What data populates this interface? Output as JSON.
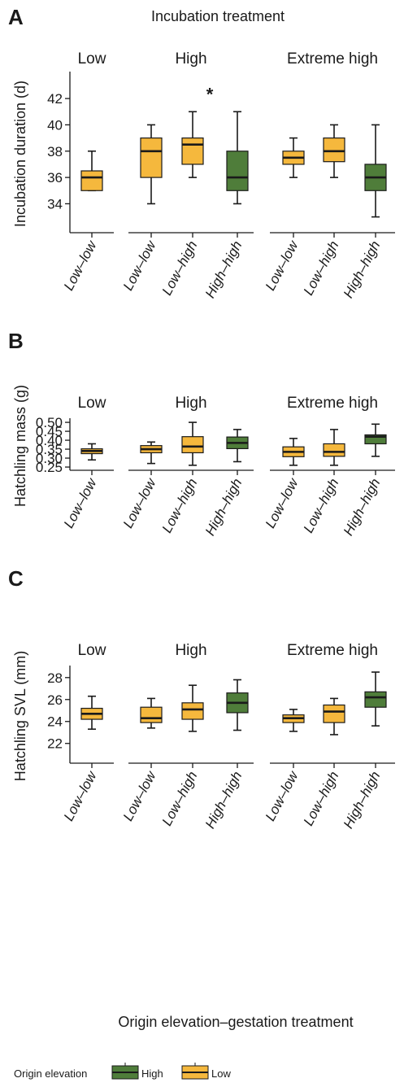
{
  "footer": {
    "xlabel": "Origin elevation–gestation treatment",
    "legend_title": "Origin elevation",
    "legend_items": [
      {
        "name": "High",
        "color": "#4f7d3a"
      },
      {
        "name": "Low",
        "color": "#f5b83d"
      }
    ]
  },
  "colors": {
    "High": "#4f7d3a",
    "Low": "#f5b83d"
  },
  "chart_data": [
    {
      "type": "box",
      "panel": "A",
      "title": "Incubation treatment",
      "ylabel": "Incubation duration (d)",
      "yticks": [
        34,
        36,
        38,
        40,
        42
      ],
      "ylim": [
        31.8,
        43.8
      ],
      "groups": [
        {
          "label": "Low",
          "boxes": [
            {
              "category": "Low–low",
              "origin": "Low",
              "min": 35,
              "q1": 35,
              "median": 36,
              "q3": 36.5,
              "max": 38
            }
          ]
        },
        {
          "label": "High",
          "boxes": [
            {
              "category": "Low–low",
              "origin": "Low",
              "min": 34,
              "q1": 36,
              "median": 38,
              "q3": 39,
              "max": 40
            },
            {
              "category": "Low–high",
              "origin": "Low",
              "min": 36,
              "q1": 37,
              "median": 38.5,
              "q3": 39,
              "max": 41,
              "annotation": "*"
            },
            {
              "category": "High–high",
              "origin": "High",
              "min": 34,
              "q1": 35,
              "median": 36,
              "q3": 38,
              "max": 41
            }
          ]
        },
        {
          "label": "Extreme high",
          "boxes": [
            {
              "category": "Low–low",
              "origin": "Low",
              "min": 36,
              "q1": 37,
              "median": 37.5,
              "q3": 38,
              "max": 39
            },
            {
              "category": "Low–high",
              "origin": "Low",
              "min": 36,
              "q1": 37.2,
              "median": 38,
              "q3": 39,
              "max": 40
            },
            {
              "category": "High–high",
              "origin": "High",
              "min": 33,
              "q1": 35,
              "median": 36,
              "q3": 37,
              "max": 40
            }
          ]
        }
      ]
    },
    {
      "type": "box",
      "panel": "B",
      "title": "",
      "ylabel": "Hatchling mass (g)",
      "yticks": [
        0.25,
        0.3,
        0.35,
        0.4,
        0.45,
        0.5
      ],
      "ytick_labels": [
        "0.25",
        "0.30",
        "0.35",
        "0.40",
        "0.45",
        "0.50"
      ],
      "ylim": [
        0.232,
        0.505
      ],
      "groups": [
        {
          "label": "Low",
          "boxes": [
            {
              "category": "Low–low",
              "origin": "Low",
              "min": 0.29,
              "q1": 0.325,
              "median": 0.34,
              "q3": 0.352,
              "max": 0.38
            }
          ]
        },
        {
          "label": "High",
          "boxes": [
            {
              "category": "Low–low",
              "origin": "Low",
              "min": 0.27,
              "q1": 0.33,
              "median": 0.35,
              "q3": 0.37,
              "max": 0.39
            },
            {
              "category": "Low–high",
              "origin": "Low",
              "min": 0.26,
              "q1": 0.33,
              "median": 0.365,
              "q3": 0.42,
              "max": 0.5
            },
            {
              "category": "High–high",
              "origin": "High",
              "min": 0.28,
              "q1": 0.353,
              "median": 0.385,
              "q3": 0.418,
              "max": 0.46
            }
          ]
        },
        {
          "label": "Extreme high",
          "boxes": [
            {
              "category": "Low–low",
              "origin": "Low",
              "min": 0.26,
              "q1": 0.308,
              "median": 0.335,
              "q3": 0.363,
              "max": 0.41
            },
            {
              "category": "Low–high",
              "origin": "Low",
              "min": 0.26,
              "q1": 0.31,
              "median": 0.335,
              "q3": 0.38,
              "max": 0.46
            },
            {
              "category": "High–high",
              "origin": "High",
              "min": 0.31,
              "q1": 0.38,
              "median": 0.42,
              "q3": 0.43,
              "max": 0.49
            }
          ]
        }
      ]
    },
    {
      "type": "box",
      "panel": "C",
      "title": "",
      "ylabel": "Hatchling SVL (mm)",
      "yticks": [
        22,
        24,
        26,
        28
      ],
      "ylim": [
        20.2,
        28.8
      ],
      "groups": [
        {
          "label": "Low",
          "boxes": [
            {
              "category": "Low–low",
              "origin": "Low",
              "min": 23.3,
              "q1": 24.2,
              "median": 24.7,
              "q3": 25.2,
              "max": 26.3
            }
          ]
        },
        {
          "label": "High",
          "boxes": [
            {
              "category": "Low–low",
              "origin": "Low",
              "min": 23.4,
              "q1": 23.9,
              "median": 24.3,
              "q3": 25.3,
              "max": 26.1
            },
            {
              "category": "Low–high",
              "origin": "Low",
              "min": 23.1,
              "q1": 24.2,
              "median": 25.1,
              "q3": 25.7,
              "max": 27.3
            },
            {
              "category": "High–high",
              "origin": "High",
              "min": 23.2,
              "q1": 24.8,
              "median": 25.7,
              "q3": 26.6,
              "max": 27.8
            }
          ]
        },
        {
          "label": "Extreme high",
          "boxes": [
            {
              "category": "Low–low",
              "origin": "Low",
              "min": 23.1,
              "q1": 23.9,
              "median": 24.3,
              "q3": 24.6,
              "max": 25.1
            },
            {
              "category": "Low–high",
              "origin": "Low",
              "min": 22.8,
              "q1": 23.9,
              "median": 24.9,
              "q3": 25.5,
              "max": 26.1
            },
            {
              "category": "High–high",
              "origin": "High",
              "min": 23.6,
              "q1": 25.3,
              "median": 26.2,
              "q3": 26.7,
              "max": 28.5
            }
          ]
        }
      ]
    }
  ]
}
